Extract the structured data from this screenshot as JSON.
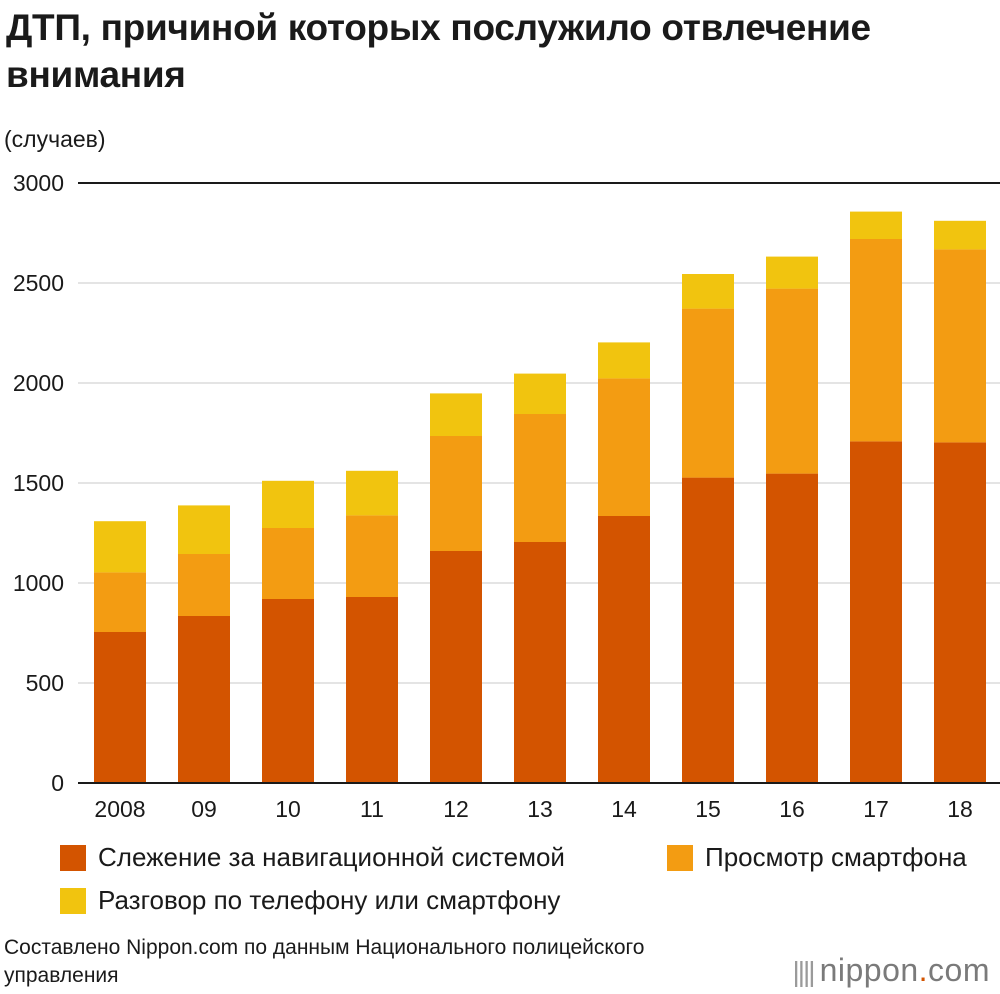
{
  "title": "ДТП, причиной которых послужило отвлечение внимания",
  "unit_label": "(случаев)",
  "chart_data": {
    "type": "bar",
    "stacked": true,
    "title": "ДТП, причиной которых послужило отвлечение внимания",
    "ylabel": "(случаев)",
    "xlabel": "",
    "ylim": [
      0,
      3000
    ],
    "yticks": [
      0,
      500,
      1000,
      1500,
      2000,
      2500,
      3000
    ],
    "ytick_labels": [
      "0",
      "500",
      "1000",
      "1500",
      "2000",
      "2500",
      "3000"
    ],
    "categories": [
      "2008",
      "09",
      "10",
      "11",
      "12",
      "13",
      "14",
      "15",
      "16",
      "17",
      "18"
    ],
    "grid": true,
    "series": [
      {
        "name": "Слежение за навигационной системой",
        "color": "#d35400",
        "values": [
          755,
          835,
          920,
          930,
          1160,
          1205,
          1335,
          1527,
          1547,
          1708,
          1703
        ]
      },
      {
        "name": "Просмотр смартфона",
        "color": "#f39c12",
        "values": [
          298,
          310,
          355,
          408,
          575,
          640,
          688,
          845,
          925,
          1012,
          965
        ]
      },
      {
        "name": "Разговор по телефону или смартфону",
        "color": "#f1c40f",
        "values": [
          256,
          243,
          236,
          223,
          213,
          202,
          180,
          173,
          160,
          137,
          143
        ]
      }
    ]
  },
  "legend": {
    "items": [
      {
        "label": "Слежение за навигационной системой",
        "color": "#d35400"
      },
      {
        "label": "Просмотр смартфона",
        "color": "#f39c12"
      },
      {
        "label": "Разговор по телефону или смартфону",
        "color": "#f1c40f"
      }
    ]
  },
  "source": "Составлено Nippon.com по данным Национального полицейского управления",
  "logo": {
    "dots": "||||",
    "text": "nippon",
    "dot": ".",
    "suffix": "com"
  }
}
